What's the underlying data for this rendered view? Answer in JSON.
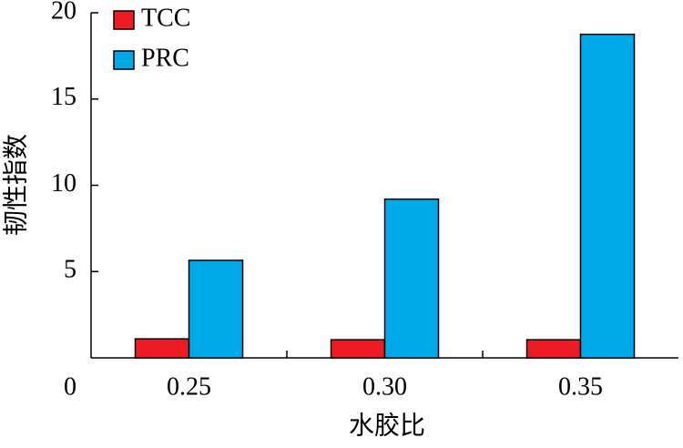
{
  "chart_data": {
    "type": "bar",
    "x_label": "水胶比",
    "y_label": "韧性指数",
    "categories": [
      "0.25",
      "0.30",
      "0.35"
    ],
    "series": [
      {
        "name": "TCC",
        "color": "#ed1c24",
        "values": [
          1.1,
          1.05,
          1.05
        ]
      },
      {
        "name": "PRC",
        "color": "#00a9e8",
        "values": [
          5.65,
          9.2,
          18.75
        ]
      }
    ],
    "ylim": [
      0,
      20
    ],
    "yticks": [
      0,
      5,
      10,
      15,
      20
    ],
    "legend": "upper left"
  }
}
